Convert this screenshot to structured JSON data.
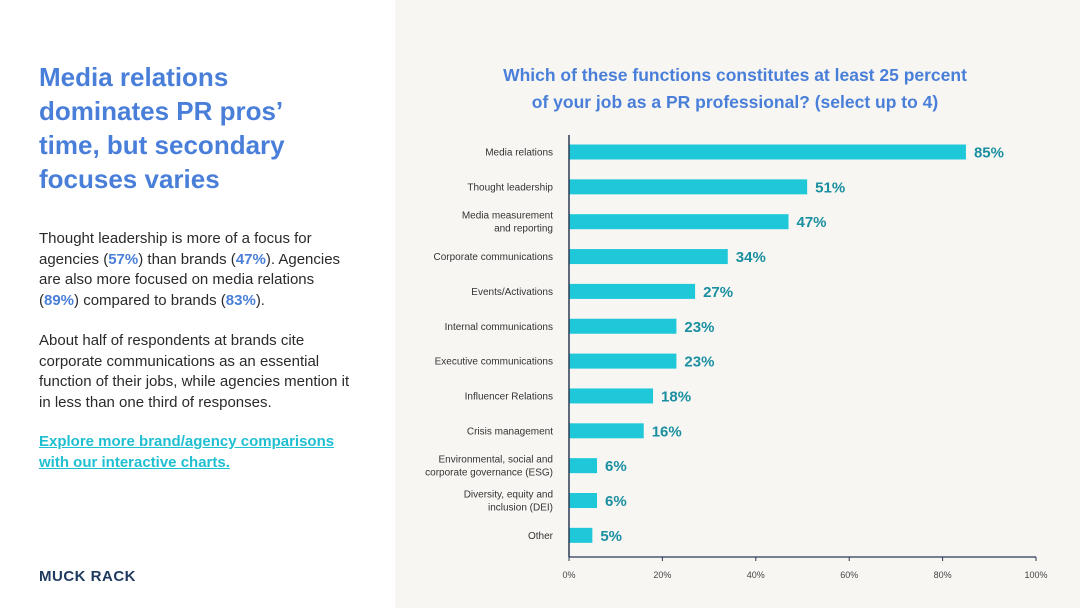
{
  "left": {
    "headline": "Media relations dominates PR pros’ time, but secondary focuses varies",
    "p1": {
      "t1": "Thought leadership is more of a focus for agencies (",
      "v1": "57%",
      "t2": ") than brands (",
      "v2": "47%",
      "t3": "). Agencies are also more focused on media relations (",
      "v3": "89%",
      "t4": ") compared to brands (",
      "v4": "83%",
      "t5": ")."
    },
    "p2": "About half of respondents at brands cite corporate communications as an essential function of their jobs, while agencies mention it in less than one third of responses.",
    "cta": "Explore more brand/agency comparisons with our interactive charts.",
    "logo": "MUCK RACK"
  },
  "colors": {
    "bar": "#1ec8d8",
    "title": "#4a7fd9",
    "value": "#1a8fa0",
    "axis": "#2b3a55"
  },
  "chart_data": {
    "type": "bar",
    "orientation": "horizontal",
    "title_lines": [
      "Which of these functions constitutes at least 25 percent",
      "of your job as a PR professional? (select up to 4)"
    ],
    "categories": [
      [
        "Media relations"
      ],
      [
        "Thought leadership"
      ],
      [
        "Media measurement",
        "and reporting"
      ],
      [
        "Corporate communications"
      ],
      [
        "Events/Activations"
      ],
      [
        "Internal communications"
      ],
      [
        "Executive communications"
      ],
      [
        "Influencer Relations"
      ],
      [
        "Crisis management"
      ],
      [
        "Environmental, social and",
        "corporate governance (ESG)"
      ],
      [
        "Diversity, equity and",
        "inclusion (DEI)"
      ],
      [
        "Other"
      ]
    ],
    "values": [
      85,
      51,
      47,
      34,
      27,
      23,
      23,
      18,
      16,
      6,
      6,
      5
    ],
    "value_suffix": "%",
    "xlim": [
      0,
      100
    ],
    "xticks": [
      "0%",
      "20%",
      "40%",
      "60%",
      "80%",
      "100%"
    ],
    "grid": false
  }
}
